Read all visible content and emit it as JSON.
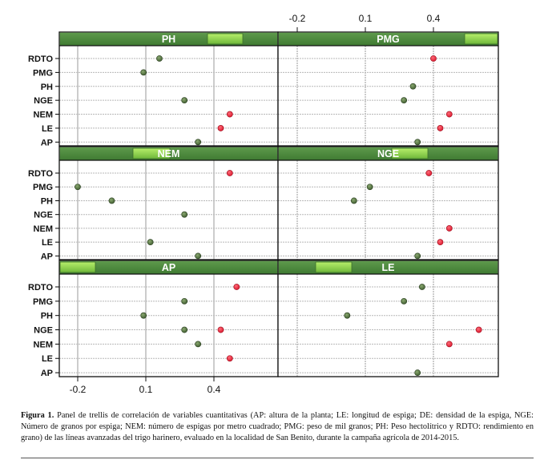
{
  "chart_data": {
    "type": "scatter",
    "layout": "trellis 2x3 dot plot",
    "variables": [
      "RDTO",
      "PMG",
      "PH",
      "NGE",
      "NEM",
      "LE",
      "AP"
    ],
    "x_ticks": [
      "-0.2",
      "0.1",
      "0.4"
    ],
    "x_tick_values": [
      -0.2,
      0.1,
      0.4
    ],
    "xlim": [
      -0.28,
      0.68
    ],
    "grid": true,
    "colors": {
      "positive_significant": "#d8132a",
      "nonsignificant": "#3d5a2e",
      "strip": "#4f8a3f",
      "strip_highlight": "#8fd14a"
    },
    "panels": [
      {
        "title": "PH",
        "points": [
          {
            "var": "RDTO",
            "r": 0.16,
            "sig": false
          },
          {
            "var": "PMG",
            "r": 0.09,
            "sig": false
          },
          {
            "var": "NGE",
            "r": 0.27,
            "sig": false
          },
          {
            "var": "NEM",
            "r": 0.47,
            "sig": true
          },
          {
            "var": "LE",
            "r": 0.43,
            "sig": true
          },
          {
            "var": "AP",
            "r": 0.33,
            "sig": false
          }
        ]
      },
      {
        "title": "PMG",
        "points": [
          {
            "var": "RDTO",
            "r": 0.4,
            "sig": true
          },
          {
            "var": "PH",
            "r": 0.31,
            "sig": false
          },
          {
            "var": "NGE",
            "r": 0.27,
            "sig": false
          },
          {
            "var": "NEM",
            "r": 0.47,
            "sig": true
          },
          {
            "var": "LE",
            "r": 0.43,
            "sig": true
          },
          {
            "var": "AP",
            "r": 0.33,
            "sig": false
          }
        ]
      },
      {
        "title": "NEM",
        "points": [
          {
            "var": "RDTO",
            "r": 0.47,
            "sig": true
          },
          {
            "var": "PMG",
            "r": -0.2,
            "sig": false
          },
          {
            "var": "PH",
            "r": -0.05,
            "sig": false
          },
          {
            "var": "NGE",
            "r": 0.27,
            "sig": false
          },
          {
            "var": "LE",
            "r": 0.12,
            "sig": false
          },
          {
            "var": "AP",
            "r": 0.33,
            "sig": false
          }
        ]
      },
      {
        "title": "NGE",
        "points": [
          {
            "var": "RDTO",
            "r": 0.38,
            "sig": true
          },
          {
            "var": "PMG",
            "r": 0.12,
            "sig": false
          },
          {
            "var": "PH",
            "r": 0.05,
            "sig": false
          },
          {
            "var": "NEM",
            "r": 0.47,
            "sig": true
          },
          {
            "var": "LE",
            "r": 0.43,
            "sig": true
          },
          {
            "var": "AP",
            "r": 0.33,
            "sig": false
          }
        ]
      },
      {
        "title": "AP",
        "points": [
          {
            "var": "RDTO",
            "r": 0.5,
            "sig": true
          },
          {
            "var": "PMG",
            "r": 0.27,
            "sig": false
          },
          {
            "var": "PH",
            "r": 0.09,
            "sig": false
          },
          {
            "var": "NGE",
            "r": 0.27,
            "sig": false
          },
          {
            "var": "NGE",
            "r": 0.43,
            "sig": true
          },
          {
            "var": "NEM",
            "r": 0.33,
            "sig": false
          },
          {
            "var": "LE",
            "r": 0.47,
            "sig": true
          }
        ]
      },
      {
        "title": "LE",
        "points": [
          {
            "var": "RDTO",
            "r": 0.35,
            "sig": false
          },
          {
            "var": "PMG",
            "r": 0.27,
            "sig": false
          },
          {
            "var": "PH",
            "r": 0.02,
            "sig": false
          },
          {
            "var": "NGE",
            "r": 0.6,
            "sig": true
          },
          {
            "var": "NEM",
            "r": 0.47,
            "sig": true
          },
          {
            "var": "AP",
            "r": 0.33,
            "sig": false
          }
        ]
      }
    ]
  },
  "caption": {
    "label": "Figura 1.",
    "text": " Panel de trellis de correlación de variables cuantitativas (AP: altura de la planta; LE: longitud  de espiga; DE: densidad de la espiga, NGE: Número de granos por espiga; NEM: número de espigas por metro cuadrado; PMG: peso de mil granos; PH: Peso hectolítrico y RDTO: rendimiento en grano) de las líneas avanzadas del trigo harinero, evaluado en la localidad de San Benito, durante la campaña agrícola de 2014-2015."
  }
}
